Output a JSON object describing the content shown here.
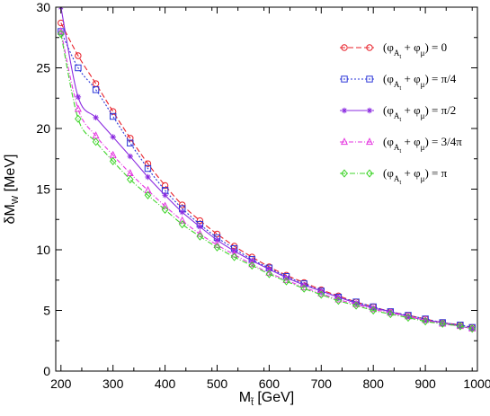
{
  "chart_data": {
    "type": "line",
    "xlabel": {
      "main": "M",
      "sub": "t̃",
      "unit": "[GeV]"
    },
    "ylabel": {
      "main": "δM",
      "sub": "W",
      "unit": "[MeV]"
    },
    "xlim": [
      190,
      1000
    ],
    "ylim": [
      0,
      30
    ],
    "xticks": [
      200,
      300,
      400,
      500,
      600,
      700,
      800,
      900,
      1000
    ],
    "yticks": [
      0,
      5,
      10,
      15,
      20,
      25,
      30
    ],
    "grid": false,
    "legend_position": "top-right",
    "series": [
      {
        "name": "(φ_At + φ_μ) = 0",
        "legend": {
          "pre": "(φ",
          "sub": "A",
          "subsub": "t",
          "mid": " + φ",
          "sub2": "μ",
          "post": ") = 0"
        },
        "color": "#e8202a",
        "dash": "6,3",
        "marker": "circle",
        "x": [
          200,
          233,
          267,
          300,
          333,
          367,
          400,
          433,
          467,
          500,
          533,
          567,
          600,
          633,
          667,
          700,
          733,
          767,
          800,
          833,
          867,
          900,
          933,
          967,
          990
        ],
        "y": [
          28.7,
          26.0,
          23.7,
          21.4,
          19.2,
          17.1,
          15.3,
          13.7,
          12.4,
          11.3,
          10.3,
          9.4,
          8.6,
          7.9,
          7.3,
          6.7,
          6.2,
          5.7,
          5.3,
          4.9,
          4.6,
          4.3,
          4.0,
          3.8,
          3.6
        ]
      },
      {
        "name": "(φ_At + φ_μ) = π/4",
        "legend": {
          "pre": "(φ",
          "sub": "A",
          "subsub": "t",
          "mid": " + φ",
          "sub2": "μ",
          "post": ") = π/4"
        },
        "color": "#2a35d8",
        "dash": "2,2",
        "marker": "square",
        "x": [
          200,
          233,
          267,
          300,
          333,
          367,
          400,
          433,
          467,
          500,
          533,
          567,
          600,
          633,
          667,
          700,
          733,
          767,
          800,
          833,
          867,
          900,
          933,
          967,
          990
        ],
        "y": [
          28.0,
          25.0,
          23.2,
          21.0,
          18.8,
          16.7,
          14.9,
          13.4,
          12.1,
          11.0,
          10.1,
          9.2,
          8.5,
          7.8,
          7.2,
          6.6,
          6.1,
          5.7,
          5.3,
          4.9,
          4.6,
          4.3,
          4.0,
          3.8,
          3.6
        ]
      },
      {
        "name": "(φ_At + φ_μ) = π/2",
        "legend": {
          "pre": "(φ",
          "sub": "A",
          "subsub": "t",
          "mid": " + φ",
          "sub2": "μ",
          "post": ") = π/2"
        },
        "color": "#8b2be0",
        "dash": "",
        "marker": "star",
        "x": [
          200,
          233,
          267,
          300,
          333,
          367,
          400,
          433,
          467,
          500,
          533,
          567,
          600,
          633,
          667,
          700,
          733,
          767,
          800,
          833,
          867,
          900,
          933,
          967,
          990
        ],
        "y": [
          30.0,
          22.6,
          20.9,
          19.3,
          17.7,
          16.0,
          14.5,
          13.1,
          11.9,
          10.8,
          9.9,
          9.1,
          8.4,
          7.7,
          7.1,
          6.6,
          6.1,
          5.6,
          5.2,
          4.9,
          4.5,
          4.2,
          4.0,
          3.7,
          3.5
        ]
      },
      {
        "name": "(φ_At + φ_μ) = 3/4π",
        "legend": {
          "pre": "(φ",
          "sub": "A",
          "subsub": "t",
          "mid": " + φ",
          "sub2": "μ",
          "post": ") = 3/4π"
        },
        "color": "#e535e0",
        "dash": "5,2,1,2",
        "marker": "triangle",
        "x": [
          200,
          233,
          267,
          300,
          333,
          367,
          400,
          433,
          467,
          500,
          533,
          567,
          600,
          633,
          667,
          700,
          733,
          767,
          800,
          833,
          867,
          900,
          933,
          967,
          990
        ],
        "y": [
          28.0,
          21.6,
          19.4,
          17.8,
          16.3,
          14.9,
          13.6,
          12.4,
          11.3,
          10.4,
          9.6,
          8.8,
          8.1,
          7.5,
          6.9,
          6.4,
          5.9,
          5.5,
          5.1,
          4.8,
          4.5,
          4.2,
          3.9,
          3.7,
          3.5
        ]
      },
      {
        "name": "(φ_At + φ_μ) = π",
        "legend": {
          "pre": "(φ",
          "sub": "A",
          "subsub": "t",
          "mid": " + φ",
          "sub2": "μ",
          "post": ") = π"
        },
        "color": "#3fd42a",
        "dash": "6,2,1,2",
        "marker": "diamond",
        "x": [
          200,
          233,
          267,
          300,
          333,
          367,
          400,
          433,
          467,
          500,
          533,
          567,
          600,
          633,
          667,
          700,
          733,
          767,
          800,
          833,
          867,
          900,
          933,
          967,
          990
        ],
        "y": [
          27.8,
          20.8,
          18.9,
          17.3,
          15.8,
          14.5,
          13.3,
          12.1,
          11.1,
          10.2,
          9.4,
          8.7,
          8.0,
          7.4,
          6.8,
          6.3,
          5.8,
          5.4,
          5.0,
          4.7,
          4.4,
          4.1,
          3.9,
          3.7,
          3.5
        ]
      }
    ]
  }
}
